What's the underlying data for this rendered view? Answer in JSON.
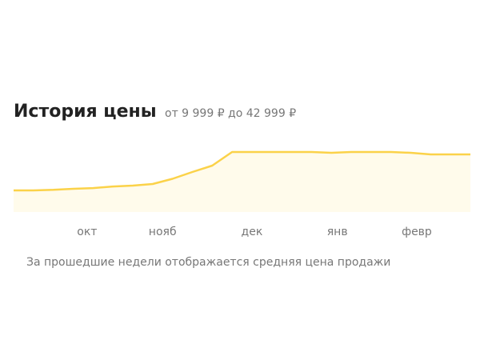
{
  "chart_data": {
    "type": "line",
    "title": "История цены",
    "subtitle": "от 9 999 ₽ до 42 999 ₽",
    "note": "За прошедшие недели отображается средняя цена продажи",
    "x": [
      0,
      1,
      2,
      3,
      4,
      5,
      6,
      7,
      8,
      9,
      10,
      11,
      12,
      13,
      14,
      15,
      16,
      17,
      18,
      19,
      20,
      21,
      22,
      23
    ],
    "series": [
      {
        "color": "#fbd249",
        "values": [
          9999,
          9999,
          10500,
          11374,
          12000,
          13400,
          14124,
          15499,
          20000,
          25811,
          31311,
          42999,
          42999,
          42999,
          42999,
          42999,
          42311,
          42999,
          42999,
          42999,
          42311,
          40936,
          40936,
          40936
        ]
      }
    ],
    "xlim": [
      0,
      23
    ],
    "xticks": [
      {
        "value": 3.7,
        "label": "окт"
      },
      {
        "value": 7.5,
        "label": "нояб"
      },
      {
        "value": 12,
        "label": "дек"
      },
      {
        "value": 16.3,
        "label": "янв"
      },
      {
        "value": 20.3,
        "label": "февр"
      }
    ],
    "fill": "#fffbeb"
  }
}
